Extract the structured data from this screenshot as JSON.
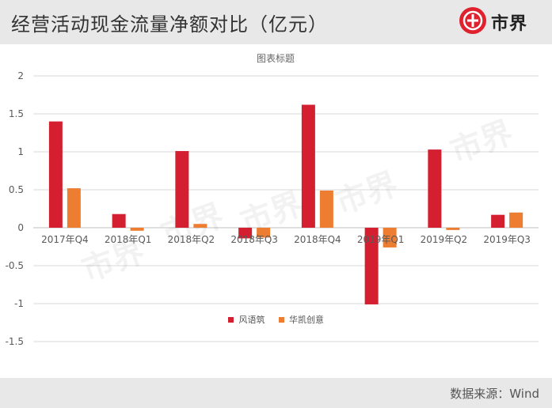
{
  "header": {
    "title": "经营活动现金流量净额对比（亿元）",
    "logo_text": "市界"
  },
  "footer": {
    "source": "数据来源：Wind"
  },
  "watermark": "市界",
  "colors": {
    "series1": "#d41f31",
    "series2": "#ed7d31",
    "header_bg": "#e8e8e8",
    "logo_red": "#e0222f"
  },
  "chart_data": {
    "type": "bar",
    "title": "图表标题",
    "categories": [
      "2017年Q4",
      "2018年Q1",
      "2018年Q2",
      "2018年Q3",
      "2018年Q4",
      "2019年Q1",
      "2019年Q2",
      "2019年Q3"
    ],
    "series": [
      {
        "name": "风语筑",
        "values": [
          1.4,
          0.18,
          1.01,
          -0.14,
          1.62,
          -1.01,
          1.03,
          0.17
        ]
      },
      {
        "name": "华凯创意",
        "values": [
          0.52,
          -0.04,
          0.05,
          -0.13,
          0.49,
          -0.26,
          -0.03,
          0.2
        ]
      }
    ],
    "ylim": [
      -1.5,
      2
    ],
    "yticks": [
      "2",
      "1.5",
      "1",
      "0.5",
      "0",
      "-0.5",
      "-1",
      "-1.5"
    ],
    "grid": true,
    "legend": "bottom"
  }
}
